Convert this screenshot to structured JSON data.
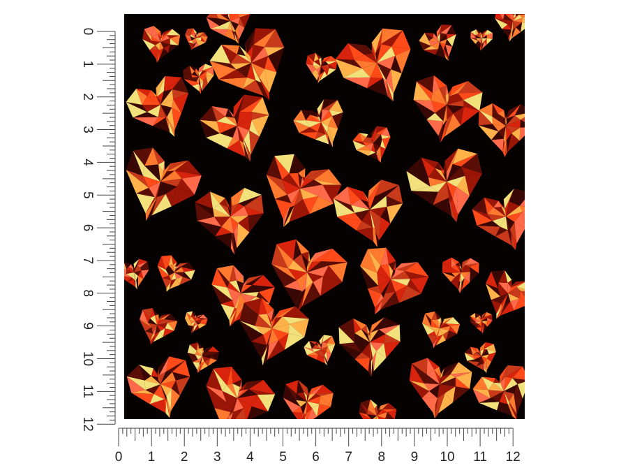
{
  "ruler": {
    "vertical_labels": [
      0,
      1,
      2,
      3,
      4,
      5,
      6,
      7,
      8,
      9,
      10,
      11,
      12
    ],
    "horizontal_labels": [
      0,
      1,
      2,
      3,
      4,
      5,
      6,
      7,
      8,
      9,
      10,
      11,
      12
    ]
  }
}
